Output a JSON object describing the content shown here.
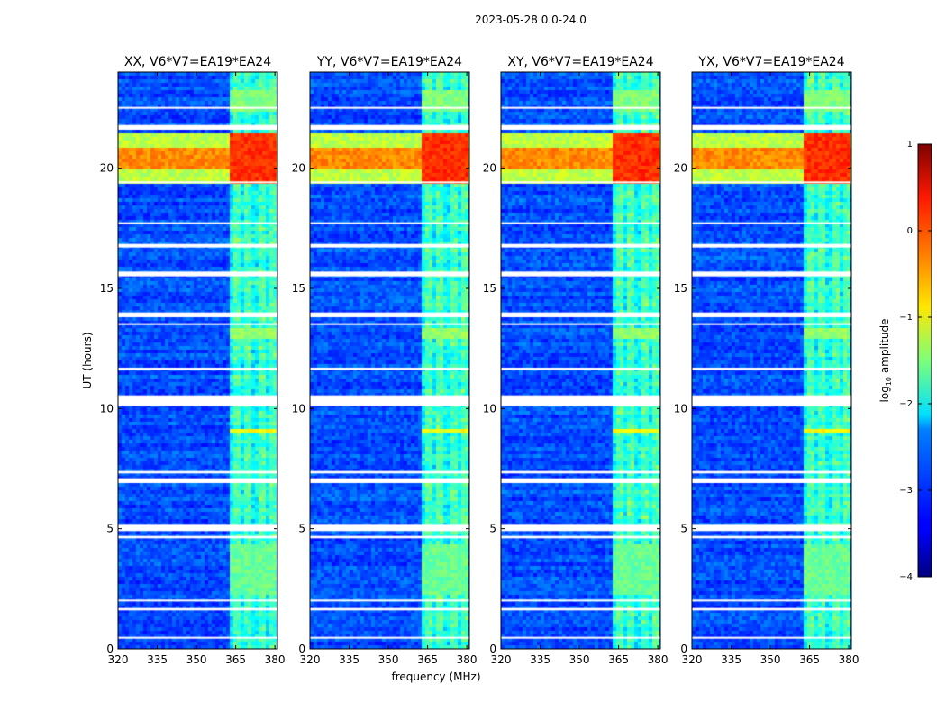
{
  "suptitle": "2023-05-28 0.0-24.0",
  "chart_data": {
    "type": "heatmap",
    "title": "2023-05-28 0.0-24.0",
    "xlabel": "frequency (MHz)",
    "ylabel": "UT (hours)",
    "xlim": [
      320,
      381
    ],
    "ylim": [
      0,
      24
    ],
    "xticks": [
      320,
      335,
      350,
      365,
      380
    ],
    "yticks": [
      0,
      5,
      10,
      15,
      20
    ],
    "colorbar": {
      "label": "log10 amplitude",
      "label_base": "log",
      "label_sub": "10",
      "label_rest": " amplitude",
      "range": [
        -4,
        1
      ],
      "ticks": [
        -4,
        -3,
        -2,
        -1,
        0,
        1
      ],
      "tick_labels": [
        "−4",
        "−3",
        "−2",
        "−1",
        "0",
        "1"
      ],
      "colormap": "jet"
    },
    "background_level": -3.0,
    "interference_band_mhz": [
      363,
      380
    ],
    "subband_centers_mhz": [
      365,
      370,
      375,
      379
    ],
    "flagged_time_ranges_hours": [
      [
        0.45,
        0.5
      ],
      [
        1.6,
        1.7
      ],
      [
        2.0,
        2.05
      ],
      [
        4.6,
        4.7
      ],
      [
        4.9,
        5.2
      ],
      [
        6.9,
        7.1
      ],
      [
        7.3,
        7.4
      ],
      [
        10.1,
        10.55
      ],
      [
        11.6,
        11.7
      ],
      [
        13.5,
        13.55
      ],
      [
        13.8,
        14.0
      ],
      [
        15.5,
        15.7
      ],
      [
        16.7,
        16.85
      ],
      [
        17.7,
        17.75
      ],
      [
        19.4,
        19.45
      ],
      [
        21.6,
        21.8
      ],
      [
        22.5,
        22.55
      ]
    ],
    "bright_time_ranges_hours": [
      [
        19.3,
        21.4,
        0.15
      ],
      [
        12.95,
        13.3,
        -1.2
      ],
      [
        9.0,
        9.1,
        -0.7
      ],
      [
        2.3,
        4.3,
        -1.4
      ],
      [
        22.4,
        23.2,
        -1.3
      ]
    ],
    "panels": [
      {
        "title": "XX, V6*V7=EA19*EA24",
        "polarization": "XX",
        "baseline": "V6*V7=EA19*EA24"
      },
      {
        "title": "YY, V6*V7=EA19*EA24",
        "polarization": "YY",
        "baseline": "V6*V7=EA19*EA24"
      },
      {
        "title": "XY, V6*V7=EA19*EA24",
        "polarization": "XY",
        "baseline": "V6*V7=EA19*EA24"
      },
      {
        "title": "YX, V6*V7=EA19*EA24",
        "polarization": "YX",
        "baseline": "V6*V7=EA19*EA24"
      }
    ]
  }
}
